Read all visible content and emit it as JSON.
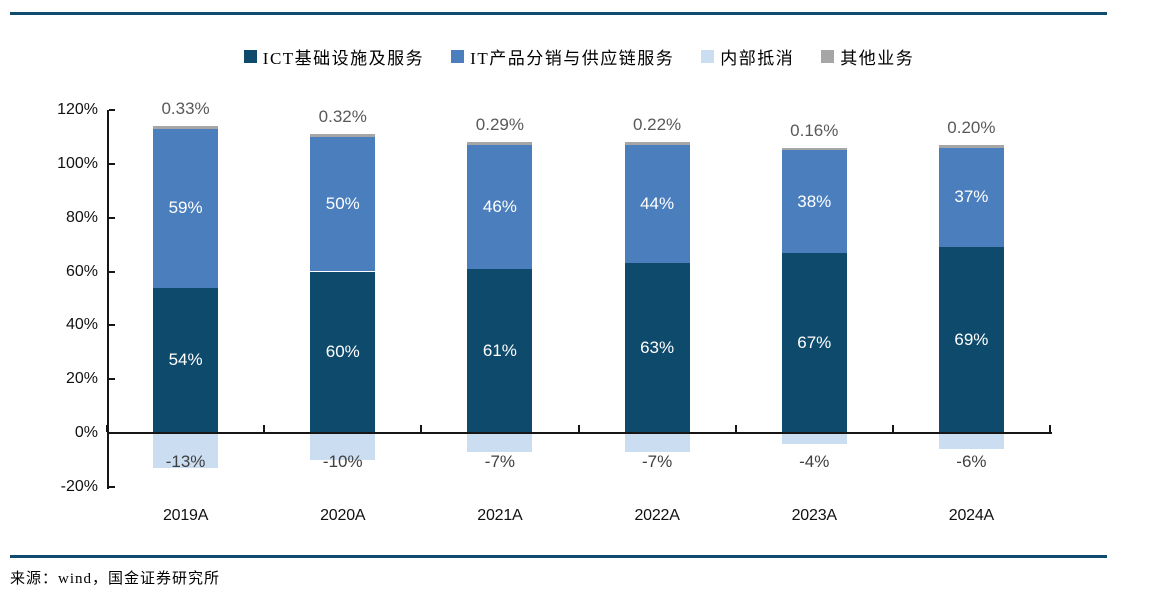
{
  "legend": {
    "items": [
      {
        "label": "ICT基础设施及服务",
        "color": "#0E4A6B",
        "icon": "legend-swatch-dark-blue"
      },
      {
        "label": "IT产品分销与供应链服务",
        "color": "#4A7EBD",
        "icon": "legend-swatch-medium-blue"
      },
      {
        "label": "内部抵消",
        "color": "#CBDEF1",
        "icon": "legend-swatch-light-blue"
      },
      {
        "label": "其他业务",
        "color": "#A6A6A6",
        "icon": "legend-swatch-gray"
      }
    ]
  },
  "chart_data": {
    "type": "bar",
    "subtype": "stacked-percentage-column",
    "title": "",
    "categories": [
      "2019A",
      "2020A",
      "2021A",
      "2022A",
      "2023A",
      "2024A"
    ],
    "series": [
      {
        "name": "ICT基础设施及服务",
        "color": "#0E4A6B",
        "values": [
          54,
          60,
          61,
          63,
          67,
          69
        ],
        "labels": [
          "54%",
          "60%",
          "61%",
          "63%",
          "67%",
          "69%"
        ],
        "label_color": "#FFFFFF",
        "label_position": "center"
      },
      {
        "name": "IT产品分销与供应链服务",
        "color": "#4A7EBD",
        "values": [
          59,
          50,
          46,
          44,
          38,
          37
        ],
        "labels": [
          "59%",
          "50%",
          "46%",
          "44%",
          "38%",
          "37%"
        ],
        "label_color": "#FFFFFF",
        "label_position": "center"
      },
      {
        "name": "内部抵消",
        "color": "#CBDEF1",
        "values": [
          -13,
          -10,
          -7,
          -7,
          -4,
          -6
        ],
        "labels": [
          "-13%",
          "-10%",
          "-7%",
          "-7%",
          "-4%",
          "-6%"
        ],
        "label_color": "#3F3F3F",
        "label_position": "below-axis"
      },
      {
        "name": "其他业务",
        "color": "#A6A6A6",
        "values": [
          0.33,
          0.32,
          0.29,
          0.22,
          0.16,
          0.2
        ],
        "labels": [
          "0.33%",
          "0.32%",
          "0.29%",
          "0.22%",
          "0.16%",
          "0.20%"
        ],
        "label_color": "#595959",
        "label_position": "above-bar"
      }
    ],
    "y_axis": {
      "tick_labels": [
        "120%",
        "100%",
        "80%",
        "60%",
        "40%",
        "20%",
        "0%",
        "-20%"
      ],
      "tick_values": [
        120,
        100,
        80,
        60,
        40,
        20,
        0,
        -20
      ],
      "min": -20,
      "max": 120
    },
    "grid": false,
    "legend_position": "top"
  },
  "source_note": "来源：wind，国金证券研究所",
  "colors": {
    "rule": "#0F4C6E",
    "axis": "#161616",
    "background": "#FFFFFF"
  }
}
